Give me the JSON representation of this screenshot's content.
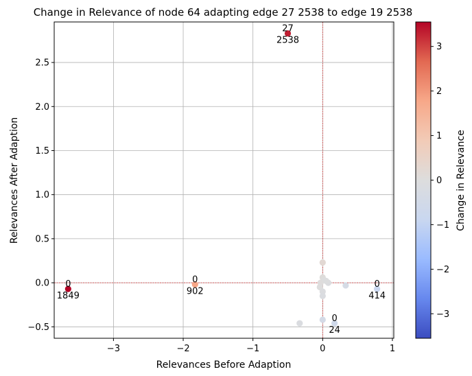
{
  "chart_data": {
    "type": "scatter",
    "title": "Change in Relevance of node 64 adapting edge   27  2538 to edge 19  2538",
    "xlabel": "Relevances Before Adaption",
    "ylabel": "Relevances After Adaption",
    "xlim": [
      -3.85,
      1.02
    ],
    "ylim": [
      -0.63,
      2.96
    ],
    "xticks": [
      -3,
      -2,
      -1,
      0,
      1
    ],
    "yticks": [
      -0.5,
      0.0,
      0.5,
      1.0,
      1.5,
      2.0,
      2.5
    ],
    "xtick_labels": [
      "−3",
      "−2",
      "−1",
      "0",
      "1"
    ],
    "ytick_labels": [
      "−0.5",
      "0.0",
      "0.5",
      "1.0",
      "1.5",
      "2.0",
      "2.5"
    ],
    "grid": true,
    "reference_lines": {
      "x": 0,
      "y": 0,
      "color": "#d62728",
      "style": "dashed"
    },
    "colorbar": {
      "label": "Change in Relevance",
      "range": [
        -3.55,
        3.55
      ],
      "ticks": [
        3,
        2,
        1,
        0,
        -1,
        -2,
        -3
      ],
      "tick_labels": [
        "3",
        "2",
        "1",
        "0",
        "−1",
        "−2",
        "−3"
      ],
      "colormap": "coolwarm",
      "stops": [
        "#3b4cc0",
        "#6788ee",
        "#9abbff",
        "#c9d7f0",
        "#dddddd",
        "#f2cbb7",
        "#f7a889",
        "#e26952",
        "#b40426"
      ]
    },
    "points": [
      {
        "x": -0.5,
        "y": 2.83,
        "c": 3.33
      },
      {
        "x": -3.65,
        "y": -0.07,
        "c": 3.58
      },
      {
        "x": -1.83,
        "y": -0.02,
        "c": 1.81
      },
      {
        "x": 0.78,
        "y": -0.07,
        "c": -0.85
      },
      {
        "x": 0.17,
        "y": -0.46,
        "c": -0.63
      },
      {
        "x": -0.33,
        "y": -0.46,
        "c": -0.13
      },
      {
        "x": 0.0,
        "y": -0.42,
        "c": -0.42
      },
      {
        "x": 0.33,
        "y": -0.03,
        "c": -0.36
      },
      {
        "x": 0.0,
        "y": 0.23,
        "c": 0.23
      },
      {
        "x": 0.0,
        "y": 0.06,
        "c": 0.06
      },
      {
        "x": 0.02,
        "y": 0.03,
        "c": 0.01
      },
      {
        "x": -0.03,
        "y": 0.0,
        "c": 0.03
      },
      {
        "x": 0.08,
        "y": 0.0,
        "c": -0.08
      },
      {
        "x": -0.04,
        "y": -0.05,
        "c": -0.01
      },
      {
        "x": 0.0,
        "y": -0.1,
        "c": -0.1
      },
      {
        "x": 0.0,
        "y": -0.15,
        "c": -0.15
      },
      {
        "x": 0.05,
        "y": 0.02,
        "c": -0.03
      }
    ],
    "annotations": [
      {
        "x": -0.5,
        "y": 2.83,
        "top": "27",
        "bottom": "2538"
      },
      {
        "x": -3.65,
        "y": -0.07,
        "top": "0",
        "bottom": "1849"
      },
      {
        "x": -1.83,
        "y": -0.02,
        "top": "0",
        "bottom": "902"
      },
      {
        "x": 0.78,
        "y": -0.07,
        "top": "0",
        "bottom": "414"
      },
      {
        "x": 0.17,
        "y": -0.46,
        "top": "0",
        "bottom": "24"
      }
    ]
  }
}
